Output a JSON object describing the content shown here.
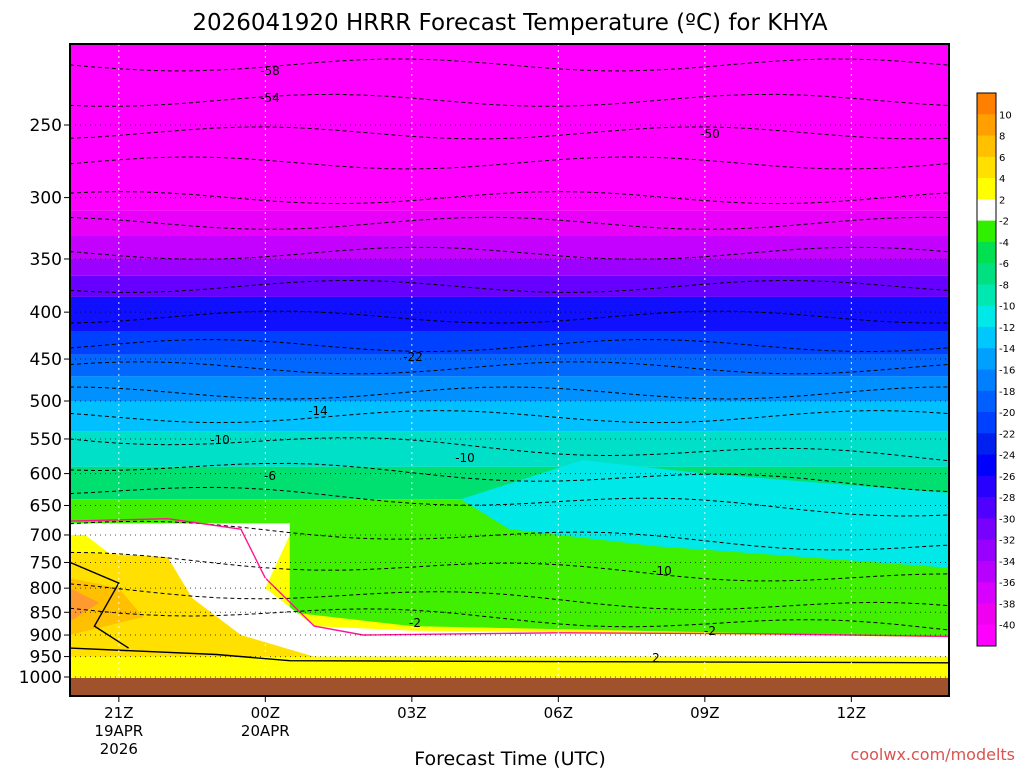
{
  "chart_data": {
    "type": "heatmap",
    "title": "2026041920 HRRR Forecast Temperature (ºC) for KHYA",
    "xlabel": "Forecast Time (UTC)",
    "credit": "coolwx.com/modelts",
    "x_ticks": [
      {
        "label": "21Z",
        "sub1": "19APR",
        "sub2": "2026",
        "hour": 1
      },
      {
        "label": "00Z",
        "sub1": "20APR",
        "sub2": "",
        "hour": 4
      },
      {
        "label": "03Z",
        "sub1": "",
        "sub2": "",
        "hour": 7
      },
      {
        "label": "06Z",
        "sub1": "",
        "sub2": "",
        "hour": 10
      },
      {
        "label": "09Z",
        "sub1": "",
        "sub2": "",
        "hour": 13
      },
      {
        "label": "12Z",
        "sub1": "",
        "sub2": "",
        "hour": 16
      }
    ],
    "x_range_hours": [
      0,
      18
    ],
    "y_ticks": [
      250,
      300,
      350,
      400,
      450,
      500,
      550,
      600,
      650,
      700,
      750,
      800,
      850,
      900,
      950,
      1000
    ],
    "y_range_hpa": [
      200,
      1030
    ],
    "y_scale": "log",
    "colorbar": {
      "levels": [
        -42,
        -40,
        -38,
        -36,
        -34,
        -32,
        -30,
        -28,
        -26,
        -24,
        -22,
        -20,
        -18,
        -16,
        -14,
        -12,
        -10,
        -8,
        -6,
        -4,
        -2,
        2,
        4,
        6,
        8,
        10,
        12
      ],
      "tick_labels": [
        "-40",
        "-38",
        "-36",
        "-34",
        "-32",
        "-30",
        "-28",
        "-26",
        "-24",
        "-22",
        "-20",
        "-18",
        "-16",
        "-14",
        "-12",
        "-10",
        "-8",
        "-6",
        "-4",
        "-2",
        "2",
        "4",
        "6",
        "8",
        "10"
      ],
      "colors": [
        "#ff00ff",
        "#f000f0",
        "#d800ff",
        "#b800ff",
        "#9800ff",
        "#7800ff",
        "#5000ff",
        "#2800ff",
        "#0000ff",
        "#0020f0",
        "#0040ff",
        "#0060ff",
        "#0080ff",
        "#00a0ff",
        "#00c8ff",
        "#00e8e8",
        "#00e8b0",
        "#00e080",
        "#00e050",
        "#30f000",
        "#ffffff",
        "#ffff00",
        "#ffe000",
        "#ffc000",
        "#ffa000",
        "#ff8000"
      ]
    },
    "contour_labels": [
      "-58",
      "-54",
      "-50",
      "-22",
      "-14",
      "-10",
      "-6",
      "-10",
      "-10",
      "-2",
      "-2",
      "2"
    ]
  }
}
